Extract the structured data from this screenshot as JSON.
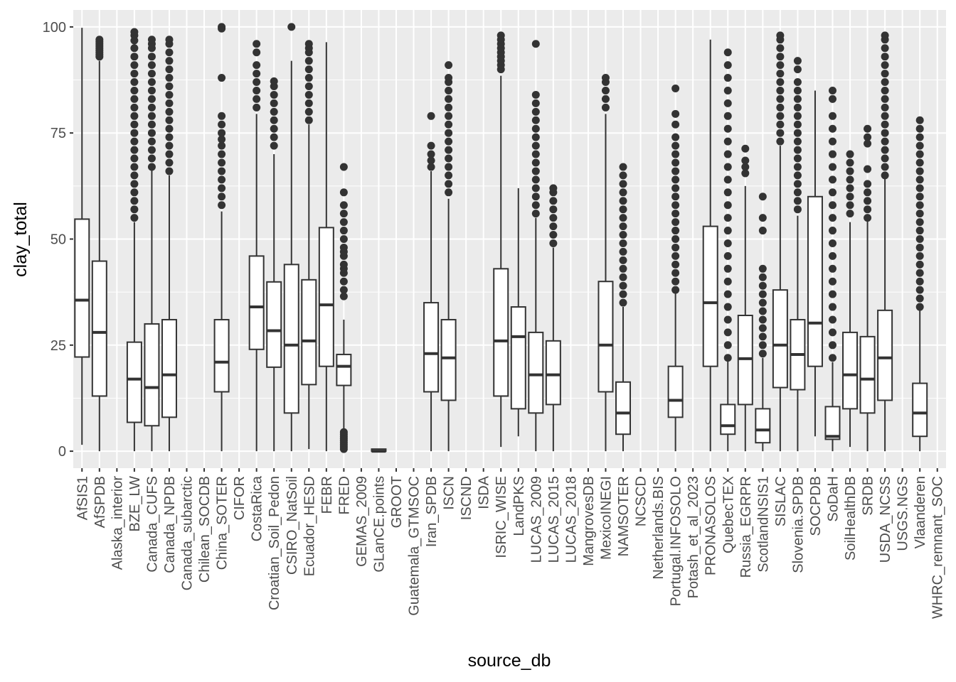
{
  "chart_data": {
    "type": "boxplot",
    "xlabel": "source_db",
    "ylabel": "clay_total",
    "ylim": [
      -4,
      104
    ],
    "y_ticks": [
      0,
      25,
      50,
      75,
      100
    ],
    "y_tick_labels": [
      "0",
      "25",
      "50",
      "75",
      "100"
    ],
    "grid": true,
    "panel_background": "#EBEBEB",
    "grid_color": "#FFFFFF",
    "box_stroke": "#333333",
    "outlier_color": "#333333",
    "categories": [
      "AfSIS1",
      "AfSPDB",
      "Alaska_interior",
      "BZE_LW",
      "Canada_CUFS",
      "Canada_NPDB",
      "Canada_subarctic",
      "Chilean_SOCDB",
      "China_SOTER",
      "CIFOR",
      "CostaRica",
      "Croatian_Soil_Pedon",
      "CSIRO_NatSoil",
      "Ecuador_HESD",
      "FEBR",
      "FRED",
      "GEMAS_2009",
      "GLanCE.points",
      "GROOT",
      "Guatemala_GTMSOC",
      "Iran_SPDB",
      "ISCN",
      "ISCND",
      "ISDA",
      "ISRIC_WISE",
      "LandPKS",
      "LUCAS_2009",
      "LUCAS_2015",
      "LUCAS_2018",
      "MangrovesDB",
      "MexicoINEGI",
      "NAMSOTER",
      "NCSCD",
      "Netherlands.BIS",
      "Portugal.INFOSOLO",
      "Potash_et_al_2023",
      "PRONASOLOS",
      "QuebecTEX",
      "Russia_EGRPR",
      "ScotlandNSIS1",
      "SISLAC",
      "Slovenia.SPDB",
      "SOCPDB",
      "SoDaH",
      "SoilHealthDB",
      "SRDB",
      "USDA_NCSS",
      "USGS.NGS",
      "Vlaanderen",
      "WHRC_remnant_SOC"
    ],
    "boxes": [
      {
        "category": "AfSIS1",
        "min": 1.5,
        "q1": 22.2,
        "median": 35.6,
        "q3": 54.7,
        "max": 99.8,
        "outliers": []
      },
      {
        "category": "AfSPDB",
        "min": 0,
        "q1": 13,
        "median": 28,
        "q3": 44.8,
        "max": 92,
        "outliers": [
          93,
          93.5,
          94,
          94.5,
          95,
          95.5,
          96,
          96.5,
          97
        ]
      },
      {
        "category": "BZE_LW",
        "min": 0,
        "q1": 6.8,
        "median": 17,
        "q3": 25.7,
        "max": 54,
        "outliers": [
          55,
          57,
          59,
          61,
          63,
          65,
          67,
          69,
          71,
          73,
          75,
          77,
          79,
          81,
          83,
          85,
          87,
          89,
          91,
          93,
          95,
          96.8,
          98,
          98.8
        ]
      },
      {
        "category": "Canada_CUFS",
        "min": 0,
        "q1": 6,
        "median": 15,
        "q3": 30,
        "max": 66.5,
        "outliers": [
          67,
          69,
          71,
          73,
          75,
          77,
          79,
          81,
          83,
          85,
          87,
          89,
          91,
          93,
          95,
          96,
          97
        ]
      },
      {
        "category": "Canada_NPDB",
        "min": 0,
        "q1": 8,
        "median": 18,
        "q3": 31,
        "max": 65,
        "outliers": [
          66,
          68,
          70,
          72,
          74,
          76,
          78,
          80,
          82,
          84,
          86,
          88,
          90,
          92,
          94,
          96,
          97
        ]
      },
      {
        "category": "China_SOTER",
        "min": 0,
        "q1": 14,
        "median": 21,
        "q3": 31,
        "max": 56.5,
        "outliers": [
          58,
          60,
          62,
          64,
          66,
          68,
          70,
          72,
          73.5,
          75,
          77,
          79,
          88,
          99.6,
          100
        ]
      },
      {
        "category": "CostaRica",
        "min": 0,
        "q1": 24,
        "median": 34,
        "q3": 46,
        "max": 79.5,
        "outliers": [
          81,
          83,
          85,
          87,
          89,
          91,
          94,
          96
        ]
      },
      {
        "category": "Croatian_Soil_Pedon",
        "min": 0,
        "q1": 19.8,
        "median": 28.4,
        "q3": 39.9,
        "max": 70,
        "outliers": [
          72,
          74,
          76,
          78,
          80,
          82,
          84,
          86,
          87.2
        ]
      },
      {
        "category": "CSIRO_NatSoil",
        "min": 0,
        "q1": 9,
        "median": 25,
        "q3": 44,
        "max": 92,
        "outliers": [
          100
        ]
      },
      {
        "category": "Ecuador_HESD",
        "min": 0.5,
        "q1": 15.7,
        "median": 26,
        "q3": 40.4,
        "max": 77,
        "outliers": [
          78,
          80,
          82,
          84,
          86,
          88,
          90,
          92,
          94,
          95,
          96
        ]
      },
      {
        "category": "FEBR",
        "min": 0,
        "q1": 20,
        "median": 34.5,
        "q3": 52.7,
        "max": 96.4,
        "outliers": []
      },
      {
        "category": "FRED",
        "min": 5,
        "q1": 15.5,
        "median": 20,
        "q3": 22.8,
        "max": 31,
        "outliers": [
          0.5,
          1,
          1.5,
          2,
          2.5,
          3,
          3.5,
          4,
          4.5,
          36.5,
          38,
          40,
          42,
          43,
          44,
          46,
          47,
          48,
          50,
          52,
          54,
          56,
          58,
          61,
          67
        ]
      },
      {
        "category": "GLanCE.points",
        "min": 0,
        "q1": 0,
        "median": 0,
        "q3": 0.5,
        "max": 0.5,
        "outliers": []
      },
      {
        "category": "Iran_SPDB",
        "min": 0,
        "q1": 14,
        "median": 23,
        "q3": 35,
        "max": 66,
        "outliers": [
          67,
          68.5,
          70,
          72,
          79
        ]
      },
      {
        "category": "ISCN",
        "min": 0,
        "q1": 12,
        "median": 22,
        "q3": 31,
        "max": 59.5,
        "outliers": [
          61,
          63,
          65,
          67,
          69,
          71,
          73,
          75,
          77,
          79,
          81,
          83,
          85,
          87,
          88,
          91
        ]
      },
      {
        "category": "ISRIC_WISE",
        "min": 1,
        "q1": 13,
        "median": 26,
        "q3": 43,
        "max": 88.5,
        "outliers": [
          90,
          91,
          92,
          93,
          94,
          95,
          96,
          97,
          98
        ]
      },
      {
        "category": "LandPKS",
        "min": 3.5,
        "q1": 10,
        "median": 27,
        "q3": 34,
        "max": 62,
        "outliers": []
      },
      {
        "category": "LUCAS_2009",
        "min": 0,
        "q1": 9,
        "median": 18,
        "q3": 28,
        "max": 55,
        "outliers": [
          56,
          58,
          60,
          62,
          64,
          66,
          68,
          70,
          72,
          74,
          76,
          78,
          80,
          82,
          84,
          96
        ]
      },
      {
        "category": "LUCAS_2015",
        "min": 0,
        "q1": 11,
        "median": 18,
        "q3": 26,
        "max": 48,
        "outliers": [
          49,
          51,
          53,
          55,
          57,
          59,
          61,
          62
        ]
      },
      {
        "category": "MexicoINEGI",
        "min": 0,
        "q1": 14,
        "median": 25,
        "q3": 40,
        "max": 79.5,
        "outliers": [
          81,
          83,
          85,
          87,
          88
        ]
      },
      {
        "category": "NAMSOTER",
        "min": 0,
        "q1": 4,
        "median": 9,
        "q3": 16.3,
        "max": 34,
        "outliers": [
          35,
          37,
          39,
          41,
          43,
          45,
          47,
          49,
          51,
          53,
          55,
          57,
          59,
          61,
          63,
          65,
          67
        ]
      },
      {
        "category": "Portugal.INFOSOLO",
        "min": 0,
        "q1": 8,
        "median": 12,
        "q3": 20,
        "max": 37.5,
        "outliers": [
          38,
          40,
          42,
          44,
          46,
          48,
          50,
          52,
          54,
          56,
          58,
          60,
          62,
          64,
          66,
          68,
          70,
          72,
          74,
          77,
          79.5,
          85.5
        ]
      },
      {
        "category": "PRONASOLOS",
        "min": 0,
        "q1": 20,
        "median": 35,
        "q3": 53,
        "max": 97,
        "outliers": []
      },
      {
        "category": "QuebecTEX",
        "min": 0,
        "q1": 4,
        "median": 6,
        "q3": 11,
        "max": 21.5,
        "outliers": [
          22,
          25,
          28,
          31,
          34,
          37,
          40,
          43,
          46,
          49,
          52,
          55,
          58,
          61,
          64,
          67,
          70,
          73,
          76,
          79,
          82,
          85,
          88,
          91,
          94
        ]
      },
      {
        "category": "Russia_EGRPR",
        "min": 0,
        "q1": 11,
        "median": 21.8,
        "q3": 32,
        "max": 62.5,
        "outliers": [
          65.5,
          67,
          68.5,
          71.3
        ]
      },
      {
        "category": "ScotlandNSIS1",
        "min": 0,
        "q1": 2,
        "median": 5,
        "q3": 10,
        "max": 22,
        "outliers": [
          23,
          25,
          27,
          29,
          31,
          33,
          35,
          37,
          39,
          41,
          43,
          52,
          55,
          60
        ]
      },
      {
        "category": "SISLAC",
        "min": 0,
        "q1": 15,
        "median": 25,
        "q3": 38,
        "max": 72,
        "outliers": [
          73,
          75,
          77,
          79,
          81,
          83,
          85,
          87,
          89,
          91,
          93,
          95,
          97,
          98
        ]
      },
      {
        "category": "Slovenia.SPDB",
        "min": 0,
        "q1": 14.5,
        "median": 22.8,
        "q3": 31,
        "max": 55.5,
        "outliers": [
          57,
          59,
          61,
          63,
          65,
          67,
          69,
          71,
          73,
          75,
          77,
          79,
          81,
          83,
          85,
          87,
          90,
          92
        ]
      },
      {
        "category": "SOCPDB",
        "min": 3.5,
        "q1": 20,
        "median": 30.2,
        "q3": 60,
        "max": 85,
        "outliers": []
      },
      {
        "category": "SoDaH",
        "min": 0,
        "q1": 2.8,
        "median": 3.5,
        "q3": 10.5,
        "max": 21,
        "outliers": [
          22,
          25,
          28,
          31,
          34,
          37,
          40,
          43,
          46,
          49,
          52,
          55,
          58,
          61,
          64,
          67,
          70,
          73,
          76,
          79,
          83,
          85
        ]
      },
      {
        "category": "SoilHealthDB",
        "min": 1,
        "q1": 10,
        "median": 18,
        "q3": 28,
        "max": 54,
        "outliers": [
          56,
          58,
          60,
          62,
          64,
          66,
          68,
          70
        ]
      },
      {
        "category": "SRDB",
        "min": 0,
        "q1": 9,
        "median": 17,
        "q3": 27,
        "max": 54.5,
        "outliers": [
          55,
          57,
          59,
          61,
          63,
          66.5,
          72.5,
          74,
          76
        ]
      },
      {
        "category": "USDA_NCSS",
        "min": 0,
        "q1": 12,
        "median": 22,
        "q3": 33.2,
        "max": 64.5,
        "outliers": [
          65,
          67,
          69,
          71,
          73,
          75,
          77,
          79,
          81,
          83,
          85,
          87,
          89,
          91,
          93,
          95,
          97,
          98
        ]
      },
      {
        "category": "Vlaanderen",
        "min": 0,
        "q1": 3.5,
        "median": 9,
        "q3": 16,
        "max": 33.5,
        "outliers": [
          34,
          36,
          38,
          40,
          42,
          44,
          46,
          48,
          50,
          52,
          54,
          56,
          58,
          60,
          62,
          64,
          66,
          68,
          70,
          72,
          74,
          76,
          78
        ]
      }
    ]
  }
}
